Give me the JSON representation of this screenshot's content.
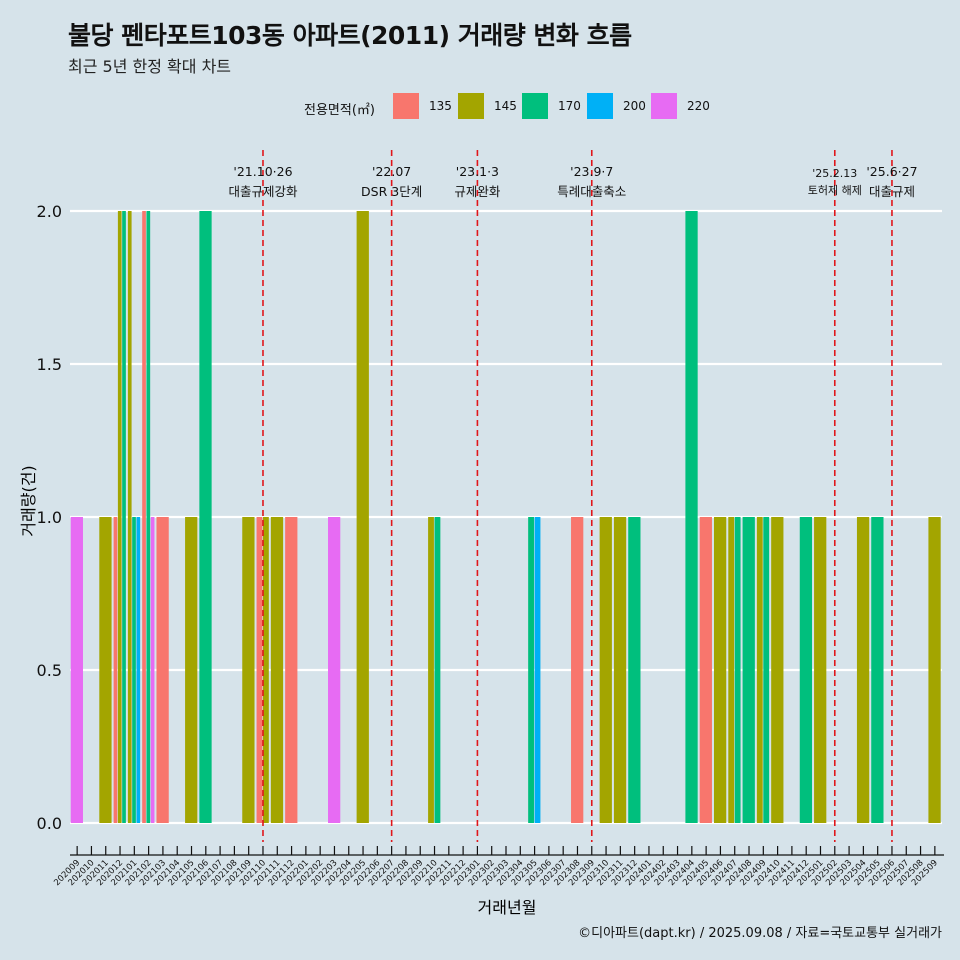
{
  "title": "불당 펜타포트103동 아파트(2011) 거래량 변화 흐름",
  "subtitle": "최근 5년 한정 확대 차트",
  "caption": "©디아파트(dapt.kr) / 2025.09.08 / 자료=국토교통부 실거래가",
  "colors": {
    "background": "#d6e3ea",
    "grid": "#ffffff",
    "event_line": "#e0161b",
    "s135": "#f8766d",
    "s145": "#a3a500",
    "s170": "#00bf7d",
    "s200": "#00b0f6",
    "s220": "#e76bf3"
  },
  "chart_data": {
    "type": "bar",
    "title": "불당 펜타포트103동 아파트(2011) 거래량 변화 흐름",
    "subtitle": "최근 5년 한정 확대 차트",
    "xlabel": "거래년월",
    "ylabel": "거래량(건)",
    "ylim": [
      0,
      2
    ],
    "yticks": [
      0.0,
      0.5,
      1.0,
      1.5,
      2.0
    ],
    "ytick_labels": [
      "0.0",
      "0.5",
      "1.0",
      "1.5",
      "2.0"
    ],
    "legend_title": "전용면적(㎡)",
    "legend_position": "top",
    "grid": true,
    "categories": [
      "202009",
      "202010",
      "202011",
      "202012",
      "202101",
      "202102",
      "202103",
      "202104",
      "202105",
      "202106",
      "202107",
      "202108",
      "202109",
      "202110",
      "202111",
      "202112",
      "202201",
      "202202",
      "202203",
      "202204",
      "202205",
      "202206",
      "202207",
      "202208",
      "202209",
      "202210",
      "202211",
      "202212",
      "202301",
      "202302",
      "202303",
      "202304",
      "202305",
      "202306",
      "202307",
      "202308",
      "202309",
      "202310",
      "202311",
      "202312",
      "202401",
      "202402",
      "202403",
      "202404",
      "202405",
      "202406",
      "202407",
      "202408",
      "202409",
      "202410",
      "202411",
      "202412",
      "202501",
      "202502",
      "202503",
      "202504",
      "202505",
      "202506",
      "202507",
      "202508",
      "202509"
    ],
    "series": [
      {
        "name": "135",
        "color": "#f8766d",
        "values": [
          0,
          0,
          0,
          1,
          0,
          2,
          1,
          0,
          0,
          0,
          0,
          0,
          0,
          1,
          0,
          1,
          0,
          0,
          0,
          0,
          0,
          0,
          0,
          0,
          0,
          0,
          0,
          0,
          0,
          0,
          0,
          0,
          0,
          0,
          0,
          1,
          0,
          0,
          0,
          0,
          0,
          0,
          0,
          0,
          1,
          0,
          0,
          0,
          0,
          0,
          0,
          0,
          0,
          0,
          0,
          0,
          0,
          0,
          0,
          0,
          0
        ]
      },
      {
        "name": "145",
        "color": "#a3a500",
        "values": [
          0,
          0,
          1,
          2,
          2,
          0,
          0,
          0,
          1,
          0,
          0,
          0,
          1,
          1,
          1,
          0,
          0,
          0,
          0,
          0,
          2,
          0,
          0,
          0,
          0,
          1,
          0,
          0,
          0,
          0,
          0,
          0,
          0,
          0,
          0,
          0,
          0,
          1,
          1,
          0,
          0,
          0,
          0,
          0,
          0,
          1,
          1,
          0,
          1,
          1,
          0,
          0,
          1,
          0,
          0,
          1,
          0,
          0,
          0,
          0,
          1
        ]
      },
      {
        "name": "170",
        "color": "#00bf7d",
        "values": [
          0,
          0,
          0,
          2,
          1,
          2,
          0,
          0,
          0,
          2,
          0,
          0,
          0,
          0,
          0,
          0,
          0,
          0,
          0,
          0,
          0,
          0,
          0,
          0,
          0,
          1,
          0,
          0,
          0,
          0,
          0,
          0,
          1,
          0,
          0,
          0,
          0,
          0,
          0,
          1,
          0,
          0,
          0,
          2,
          0,
          0,
          1,
          1,
          1,
          0,
          0,
          1,
          0,
          0,
          0,
          0,
          1,
          0,
          0,
          0,
          0
        ]
      },
      {
        "name": "200",
        "color": "#00b0f6",
        "values": [
          0,
          0,
          0,
          0,
          1,
          0,
          0,
          0,
          0,
          0,
          0,
          0,
          0,
          0,
          0,
          0,
          0,
          0,
          0,
          0,
          0,
          0,
          0,
          0,
          0,
          0,
          0,
          0,
          0,
          0,
          0,
          0,
          1,
          0,
          0,
          0,
          0,
          0,
          0,
          0,
          0,
          0,
          0,
          0,
          0,
          0,
          0,
          0,
          0,
          0,
          0,
          0,
          0,
          0,
          0,
          0,
          0,
          0,
          0,
          0,
          0
        ]
      },
      {
        "name": "220",
        "color": "#e76bf3",
        "values": [
          1,
          0,
          0,
          0,
          0,
          1,
          0,
          0,
          0,
          0,
          0,
          0,
          0,
          0,
          0,
          0,
          0,
          0,
          1,
          0,
          0,
          0,
          0,
          0,
          0,
          0,
          0,
          0,
          0,
          0,
          0,
          0,
          0,
          0,
          0,
          0,
          0,
          0,
          0,
          0,
          0,
          0,
          0,
          0,
          0,
          0,
          0,
          0,
          0,
          0,
          0,
          0,
          0,
          0,
          0,
          0,
          0,
          0,
          0,
          0,
          0
        ]
      }
    ],
    "events": [
      {
        "at": "202110",
        "date": "'21.10·26",
        "label": "대출규제강화"
      },
      {
        "at": "202207",
        "date": "'22.07",
        "label": "DSR 3단계"
      },
      {
        "at": "202301",
        "date": "'23.1·3",
        "label": "규제완화"
      },
      {
        "at": "202309",
        "date": "'23.9·7",
        "label": "특례대출축소"
      },
      {
        "at": "202502",
        "date": "'25.2.13",
        "label": "토허제 해제"
      },
      {
        "at": "202506",
        "date": "'25.6·27",
        "label": "대출규제"
      }
    ]
  }
}
